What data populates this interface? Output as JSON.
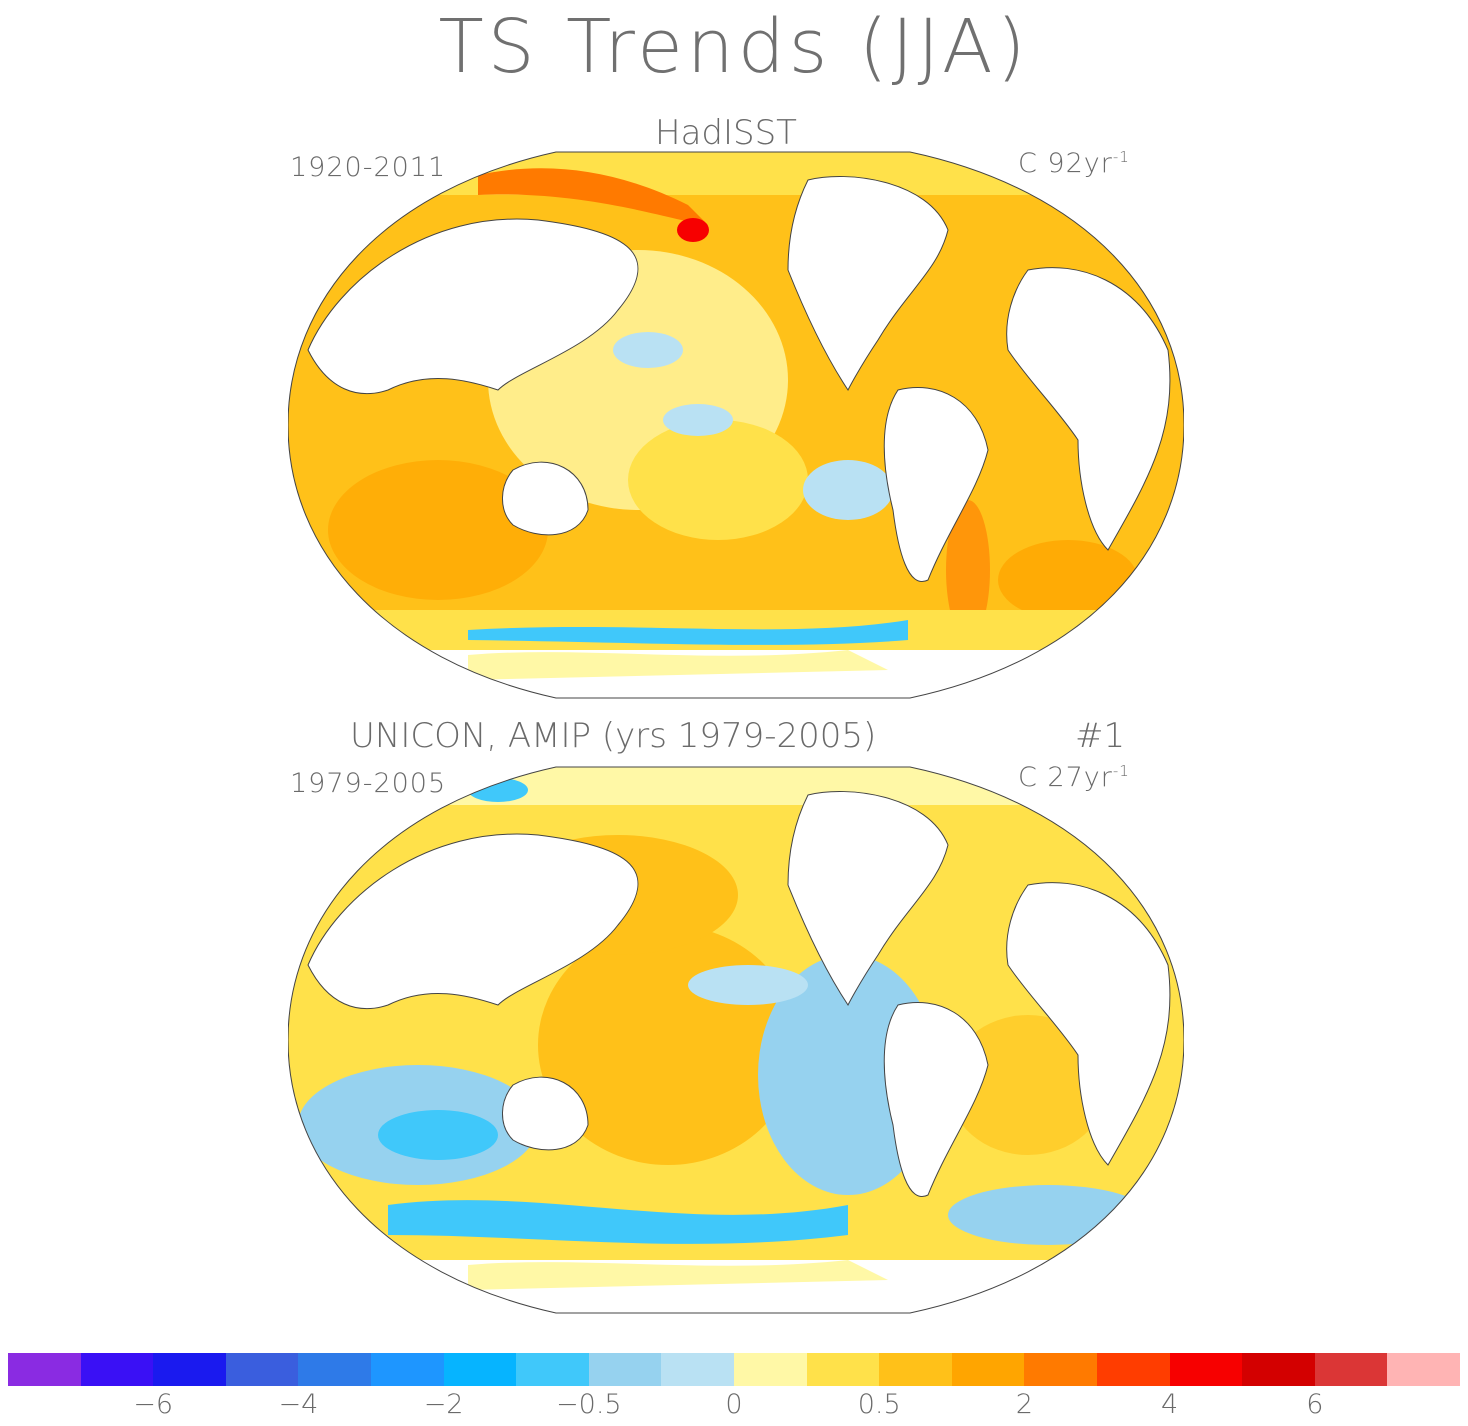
{
  "title": "TS Trends (JJA)",
  "panels": [
    {
      "title": "HadISST",
      "title_suffix": "",
      "period": "1920-2011",
      "units": "C 92yr",
      "units_exp": "-1"
    },
    {
      "title": "UNICON, AMIP (yrs 1979-2005)",
      "title_suffix": "#1",
      "period": "1979-2005",
      "units": "C 27yr",
      "units_exp": "-1"
    }
  ],
  "colorbar": {
    "colors": [
      "#8a2be2",
      "#3a10f5",
      "#1a1aef",
      "#3a5ede",
      "#2e7ae8",
      "#1e96ff",
      "#06b4ff",
      "#40c8fa",
      "#96d2ef",
      "#b9e1f3",
      "#fff8a6",
      "#ffe14a",
      "#ffc119",
      "#ffa500",
      "#ff7a00",
      "#ff3d00",
      "#f70000",
      "#d30000",
      "#db3636",
      "#ffb4b4"
    ],
    "tick_labels": [
      "-6",
      "-4",
      "-2",
      "-0.5",
      "0",
      "0.5",
      "2",
      "4",
      "6"
    ]
  },
  "chart_data": {
    "type": "heatmap",
    "description_scale": "diverging color scale",
    "colorbar_ticks": [
      -6,
      -4,
      -2,
      -0.5,
      0,
      0.5,
      2,
      4,
      6
    ]
  }
}
